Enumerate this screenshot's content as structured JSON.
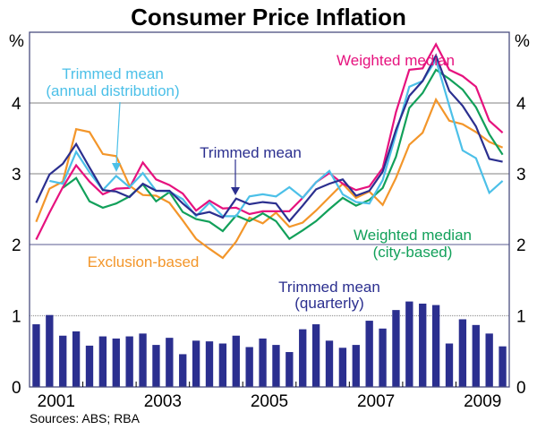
{
  "chart_data": {
    "type": "line",
    "title": "Consumer Price Inflation",
    "ylabel_left": "%",
    "ylabel_right": "%",
    "xlabel": "",
    "source": "Sources: ABS; RBA",
    "x_tick_labels": [
      "2001",
      "2003",
      "2005",
      "2007",
      "2009"
    ],
    "x_tick_years": [
      2001,
      2003,
      2005,
      2007,
      2009
    ],
    "x_range": [
      2001,
      2010
    ],
    "frequency": "quarterly",
    "start_period": "2001Q1",
    "top_panel": {
      "ylim": [
        2,
        5
      ],
      "y_ticks": [
        2,
        3,
        4
      ],
      "y_tick_labels": [
        "2",
        "3",
        "4"
      ],
      "grid": true,
      "series": [
        {
          "name": "Trimmed mean",
          "label": "Trimmed mean",
          "color": "#2b2f8f",
          "start_index": 0,
          "values": [
            2.59,
            2.99,
            3.14,
            3.42,
            3.09,
            2.77,
            2.75,
            2.67,
            2.86,
            2.76,
            2.76,
            2.58,
            2.42,
            2.46,
            2.38,
            2.65,
            2.57,
            2.6,
            2.58,
            2.33,
            2.55,
            2.78,
            2.86,
            2.92,
            2.69,
            2.76,
            3.03,
            3.62,
            4.1,
            4.31,
            4.67,
            4.17,
            3.96,
            3.67,
            3.21,
            3.17
          ]
        },
        {
          "name": "Weighted median",
          "label": "Weighted median",
          "color": "#e6127e",
          "start_index": 0,
          "values": [
            2.07,
            2.45,
            2.81,
            3.12,
            2.89,
            2.71,
            2.79,
            2.8,
            3.16,
            2.92,
            2.84,
            2.72,
            2.48,
            2.62,
            2.51,
            2.52,
            2.43,
            2.47,
            2.47,
            2.47,
            2.66,
            2.88,
            3.01,
            2.86,
            2.77,
            2.82,
            3.08,
            3.87,
            4.47,
            4.49,
            4.83,
            4.47,
            4.38,
            4.23,
            3.75,
            3.58
          ]
        },
        {
          "name": "Trimmed mean (annual distribution)",
          "label": "Trimmed mean",
          "sublabel": "(annual distribution)",
          "color": "#4cc0e8",
          "start_index": 1,
          "values": [
            2.9,
            2.86,
            3.31,
            3.02,
            2.77,
            2.97,
            2.81,
            3.01,
            2.76,
            2.75,
            2.64,
            2.4,
            2.59,
            2.4,
            2.4,
            2.68,
            2.71,
            2.68,
            2.81,
            2.66,
            2.88,
            3.04,
            2.71,
            2.6,
            2.58,
            2.91,
            3.56,
            4.23,
            4.31,
            4.61,
            3.96,
            3.33,
            3.22,
            2.73,
            2.9
          ]
        },
        {
          "name": "Weighted median (city-based)",
          "label": "Weighted median",
          "sublabel": "(city-based)",
          "color": "#12a05a",
          "start_index": 2,
          "values": [
            2.8,
            2.94,
            2.61,
            2.52,
            2.58,
            2.68,
            2.85,
            2.61,
            2.74,
            2.46,
            2.36,
            2.32,
            2.19,
            2.41,
            2.33,
            2.44,
            2.33,
            2.08,
            2.2,
            2.33,
            2.5,
            2.66,
            2.55,
            2.63,
            2.8,
            3.24,
            3.93,
            4.14,
            4.47,
            4.34,
            4.19,
            3.94,
            3.56,
            3.27
          ]
        },
        {
          "name": "Exclusion-based",
          "label": "Exclusion-based",
          "color": "#f3962a",
          "start_index": 0,
          "values": [
            2.32,
            2.79,
            2.89,
            3.63,
            3.59,
            3.28,
            3.25,
            2.83,
            2.7,
            2.69,
            2.59,
            2.34,
            2.08,
            1.94,
            1.81,
            2.04,
            2.38,
            2.3,
            2.45,
            2.25,
            2.31,
            2.48,
            2.67,
            2.86,
            2.66,
            2.75,
            2.56,
            2.94,
            3.41,
            3.58,
            4.05,
            3.75,
            3.7,
            3.59,
            3.45,
            3.37
          ]
        }
      ]
    },
    "bottom_panel": {
      "type": "bar",
      "ylim": [
        0,
        2
      ],
      "y_ticks": [
        0,
        1
      ],
      "y_tick_labels": [
        "0",
        "1"
      ],
      "grid": true,
      "series": [
        {
          "name": "Trimmed mean (quarterly)",
          "label": "Trimmed mean",
          "sublabel": "(quarterly)",
          "color": "#2b2f8f",
          "start_index": 0,
          "values": [
            0.88,
            1.01,
            0.72,
            0.78,
            0.58,
            0.71,
            0.68,
            0.71,
            0.75,
            0.59,
            0.69,
            0.46,
            0.65,
            0.64,
            0.61,
            0.72,
            0.56,
            0.68,
            0.59,
            0.49,
            0.81,
            0.88,
            0.65,
            0.55,
            0.59,
            0.93,
            0.82,
            1.08,
            1.2,
            1.17,
            1.15,
            0.61,
            0.95,
            0.87,
            0.75,
            0.57
          ]
        }
      ]
    },
    "colors": {
      "frame": "#4a4d80",
      "grid": "#9a9a9a",
      "panel_divider": "#7a7ca8"
    }
  }
}
